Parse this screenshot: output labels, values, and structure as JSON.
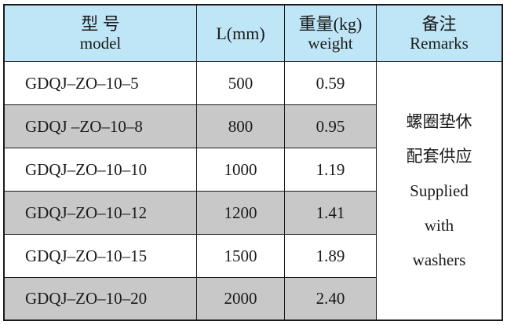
{
  "header": {
    "model_cn": "型 号",
    "model_en": "model",
    "length": "L(mm)",
    "weight_cn": "重量(kg)",
    "weight_en": "weight",
    "remarks_cn": "备注",
    "remarks_en": "Remarks"
  },
  "rows": [
    {
      "model": "GDQJ–ZO–10–5",
      "length": "500",
      "weight": "0.59"
    },
    {
      "model": "GDQJ –ZO–10–8",
      "length": "800",
      "weight": "0.95"
    },
    {
      "model": "GDQJ–ZO–10–10",
      "length": "1000",
      "weight": "1.19"
    },
    {
      "model": "GDQJ–ZO–10–12",
      "length": "1200",
      "weight": "1.41"
    },
    {
      "model": "GDQJ–ZO–10–15",
      "length": "1500",
      "weight": "1.89"
    },
    {
      "model": "GDQJ–ZO–10–20",
      "length": "2000",
      "weight": "2.40"
    }
  ],
  "remarks": {
    "line1": "螺圈垫休",
    "line2": "配套供应",
    "line3": "Supplied",
    "line4": "with",
    "line5": "washers"
  },
  "colors": {
    "header_bg": "#bfe6f6",
    "stripe_bg": "#c8c8c8",
    "border": "#1a1a1a"
  }
}
